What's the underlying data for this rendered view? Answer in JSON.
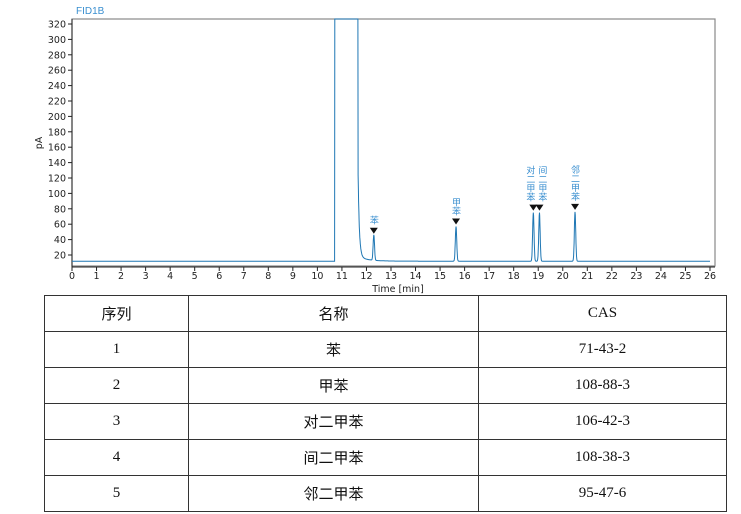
{
  "chart_data": {
    "type": "line",
    "title": "FID1B",
    "xlabel": "Time [min]",
    "ylabel": "pA",
    "xlim": [
      0,
      26
    ],
    "ylim": [
      5,
      322
    ],
    "xticks": [
      0,
      1,
      2,
      3,
      4,
      5,
      6,
      7,
      8,
      9,
      10,
      11,
      12,
      13,
      14,
      15,
      16,
      17,
      18,
      19,
      20,
      21,
      22,
      23,
      24,
      25,
      26
    ],
    "yticks": [
      20,
      40,
      60,
      80,
      100,
      120,
      140,
      160,
      180,
      200,
      220,
      240,
      260,
      280,
      300,
      320
    ],
    "baseline": 12,
    "solvent_peak": {
      "start": 10.7,
      "end": 11.65,
      "off_scale": true
    },
    "peaks": [
      {
        "time": 12.3,
        "height": 45,
        "label": "苯"
      },
      {
        "time": 15.65,
        "height": 57,
        "label": "甲苯"
      },
      {
        "time": 18.8,
        "height": 75,
        "label": "对二甲苯"
      },
      {
        "time": 19.05,
        "height": 75,
        "label": "间二甲苯"
      },
      {
        "time": 20.5,
        "height": 76,
        "label": "邻二甲苯"
      }
    ],
    "grid": false,
    "colors": {
      "trace": "#1f77b4",
      "label": "#3a8fd0",
      "marker": "#111111"
    }
  },
  "table": {
    "headers": [
      "序列",
      "名称",
      "CAS"
    ],
    "rows": [
      [
        "1",
        "苯",
        "71-43-2"
      ],
      [
        "2",
        "甲苯",
        "108-88-3"
      ],
      [
        "3",
        "对二甲苯",
        "106-42-3"
      ],
      [
        "4",
        "间二甲苯",
        "108-38-3"
      ],
      [
        "5",
        "邻二甲苯",
        "95-47-6"
      ]
    ]
  }
}
